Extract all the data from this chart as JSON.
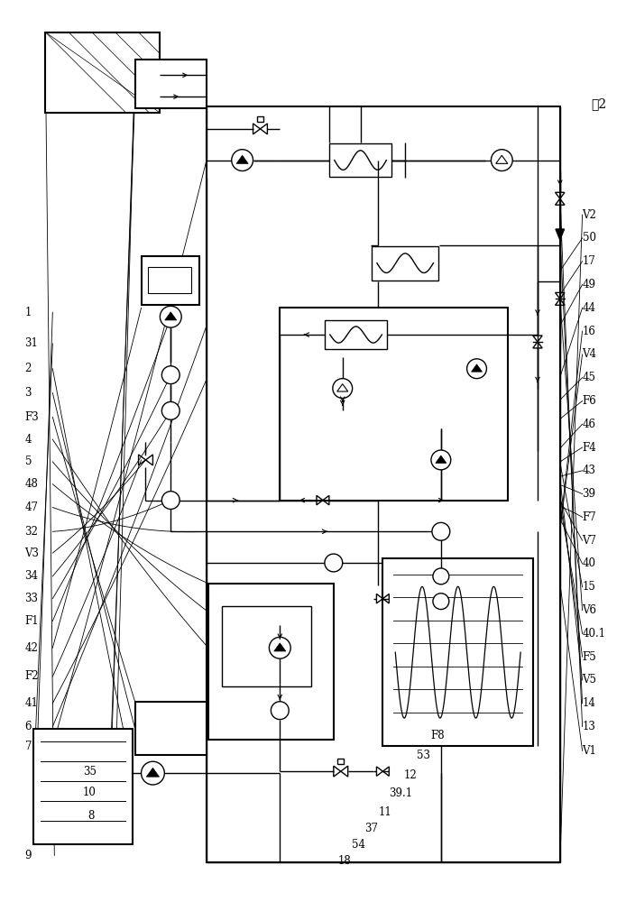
{
  "bg": "#ffffff",
  "lc": "#000000",
  "fig_w": 6.94,
  "fig_h": 10.0,
  "dpi": 100,
  "left_labels": [
    [
      "9",
      25,
      952
    ],
    [
      "8",
      95,
      908
    ],
    [
      "10",
      90,
      882
    ],
    [
      "35",
      90,
      858
    ],
    [
      "7",
      25,
      830
    ],
    [
      "6",
      25,
      808
    ],
    [
      "41",
      25,
      782
    ],
    [
      "F2",
      25,
      752
    ],
    [
      "42",
      25,
      720
    ],
    [
      "F1",
      25,
      690
    ],
    [
      "33",
      25,
      665
    ],
    [
      "34",
      25,
      640
    ],
    [
      "V3",
      25,
      614
    ],
    [
      "32",
      25,
      590
    ],
    [
      "47",
      25,
      563
    ],
    [
      "48",
      25,
      537
    ],
    [
      "5",
      25,
      512
    ],
    [
      "4",
      25,
      487
    ],
    [
      "F3",
      25,
      462
    ],
    [
      "3",
      25,
      435
    ],
    [
      "2",
      25,
      408
    ],
    [
      "31",
      25,
      380
    ],
    [
      "1",
      25,
      345
    ]
  ],
  "right_labels": [
    [
      "18",
      375,
      958
    ],
    [
      "54",
      390,
      940
    ],
    [
      "37",
      405,
      922
    ],
    [
      "11",
      420,
      904
    ],
    [
      "39.1",
      432,
      883
    ],
    [
      "12",
      448,
      862
    ],
    [
      "53",
      463,
      840
    ],
    [
      "F8",
      478,
      818
    ],
    [
      "V1",
      648,
      835
    ],
    [
      "13",
      648,
      808
    ],
    [
      "14",
      648,
      782
    ],
    [
      "V5",
      648,
      756
    ],
    [
      "F5",
      648,
      730
    ],
    [
      "40.1",
      648,
      704
    ],
    [
      "V6",
      648,
      678
    ],
    [
      "15",
      648,
      652
    ],
    [
      "40",
      648,
      626
    ],
    [
      "V7",
      648,
      600
    ],
    [
      "F7",
      648,
      574
    ],
    [
      "39",
      648,
      548
    ],
    [
      "43",
      648,
      522
    ],
    [
      "F4",
      648,
      496
    ],
    [
      "46",
      648,
      470
    ],
    [
      "F6",
      648,
      444
    ],
    [
      "45",
      648,
      418
    ],
    [
      "V4",
      648,
      392
    ],
    [
      "16",
      648,
      366
    ],
    [
      "44",
      648,
      340
    ],
    [
      "49",
      648,
      314
    ],
    [
      "17",
      648,
      288
    ],
    [
      "50",
      648,
      262
    ],
    [
      "V2",
      648,
      236
    ]
  ],
  "fig2_label": [
    658,
    112
  ]
}
